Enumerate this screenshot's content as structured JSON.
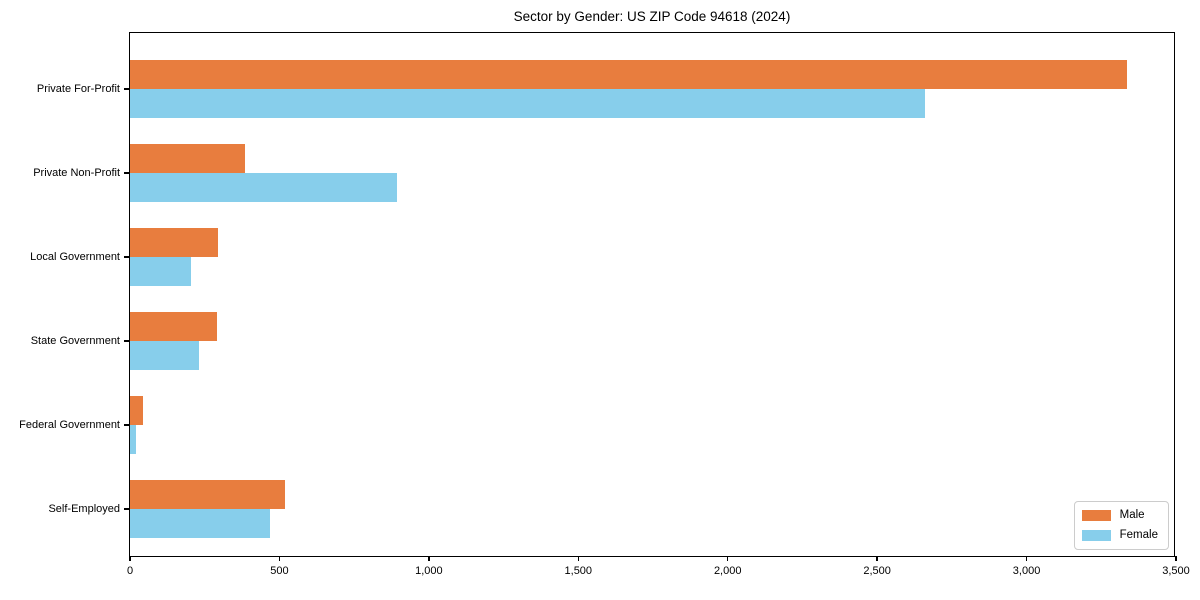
{
  "title": "Sector by Gender: US ZIP Code 94618 (2024)",
  "colors": {
    "male": "#e87d3e",
    "female": "#87ceeb",
    "axis": "#000000",
    "legend_border": "#cccccc",
    "background": "#ffffff"
  },
  "chart_data": {
    "type": "bar",
    "orientation": "horizontal",
    "title": "Sector by Gender: US ZIP Code 94618 (2024)",
    "xlabel": "",
    "ylabel": "",
    "categories": [
      "Private For-Profit",
      "Private Non-Profit",
      "Local Government",
      "State Government",
      "Federal Government",
      "Self-Employed"
    ],
    "series": [
      {
        "name": "Male",
        "color": "#e87d3e",
        "values": [
          3335,
          385,
          295,
          290,
          45,
          520
        ]
      },
      {
        "name": "Female",
        "color": "#87ceeb",
        "values": [
          2660,
          895,
          205,
          230,
          20,
          470
        ]
      }
    ],
    "xlim": [
      0,
      3500
    ],
    "xticks": [
      0,
      500,
      1000,
      1500,
      2000,
      2500,
      3000,
      3500
    ],
    "xtick_labels": [
      "0",
      "500",
      "1,000",
      "1,500",
      "2,000",
      "2,500",
      "3,000",
      "3,500"
    ],
    "grid": false,
    "legend": {
      "position": "lower right",
      "entries": [
        "Male",
        "Female"
      ]
    }
  }
}
